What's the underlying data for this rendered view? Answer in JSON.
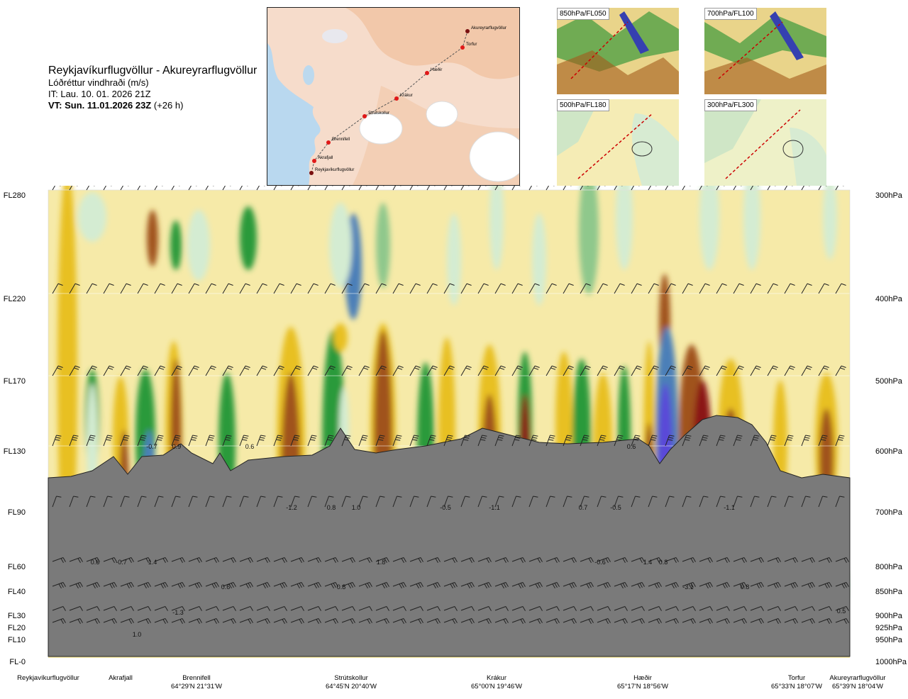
{
  "header": {
    "route": "Reykjavíkurflugvöllur - Akureyrarflugvöllur",
    "quantity": "Lóðréttur vindhraði (m/s)",
    "issue_time": "IT: Lau. 10. 01. 2026 21Z",
    "valid_time_bold": "VT: Sun. 11.01.2026 23Z",
    "valid_time_rest": "(+26 h)"
  },
  "map": {
    "stations": [
      "Akureyrarflugvöllur",
      "Torfur",
      "Hæðir",
      "Krákur",
      "Strútskollur",
      "Brennifell",
      "Akrafjall",
      "Reykjavíkurflugvöllur"
    ]
  },
  "thumbnails": [
    {
      "label": "850hPa/FL050"
    },
    {
      "label": "700hPa/FL100"
    },
    {
      "label": "500hPa/FL180"
    },
    {
      "label": "300hPa/FL300"
    }
  ],
  "chart_data": {
    "type": "heatmap",
    "title": "Reykjavíkurflugvöllur - Akureyrarflugvöllur",
    "variable": "Lóðréttur vindhraði (m/s)",
    "left_axis_labels": [
      "FL280",
      "FL220",
      "FL170",
      "FL130",
      "FL90",
      "FL60",
      "FL40",
      "FL30",
      "FL20",
      "FL10",
      "FL-0"
    ],
    "right_axis_labels": [
      "300hPa",
      "400hPa",
      "500hPa",
      "600hPa",
      "700hPa",
      "800hPa",
      "850hPa",
      "900hPa",
      "925hPa",
      "950hPa",
      "1000hPa"
    ],
    "pressure_levels_hpa": [
      300,
      400,
      500,
      600,
      700,
      800,
      850,
      900,
      925,
      950,
      1000
    ],
    "stations": [
      {
        "name": "Reykjavíkurflugvöllur",
        "coord": ""
      },
      {
        "name": "Akrafjall",
        "coord": ""
      },
      {
        "name": "Brennifell",
        "coord": "64°29'N 21°31'W"
      },
      {
        "name": "Strútskollur",
        "coord": "64°45'N 20°40'W"
      },
      {
        "name": "Krákur",
        "coord": "65°00'N 19°46'W"
      },
      {
        "name": "Hæðir",
        "coord": "65°17'N 18°56'W"
      },
      {
        "name": "Torfur",
        "coord": "65°33'N 18°07'W"
      },
      {
        "name": "Akureyrarflugvöllur",
        "coord": "65°39'N 18°04'W"
      }
    ],
    "annotations": [
      "-0.7",
      "0.9",
      "0.6",
      "-1.2",
      "0.8",
      "1.0",
      "-0.5",
      "-1.1",
      "0.7",
      "-0.5",
      "0.6",
      "-1.1",
      "0.6",
      "-0.7",
      "1.4",
      "1.8",
      "0.6",
      "0.8",
      "-0.6",
      "1.4",
      "0.8",
      "-3.1",
      "0.8",
      "0.5",
      "-1.3",
      "1.0"
    ]
  },
  "colors": {
    "strong_down": "#8b1414",
    "down": "#a0521c",
    "weak_down": "#e8c020",
    "very_weak_down": "#f6eaa8",
    "very_weak_up": "#d4ecd2",
    "weak_up": "#8fc88c",
    "up": "#2b9a3a",
    "strong_up": "#4b7fb8",
    "very_strong_up": "#5a4ad8",
    "terrain": "#7a7a7a"
  }
}
